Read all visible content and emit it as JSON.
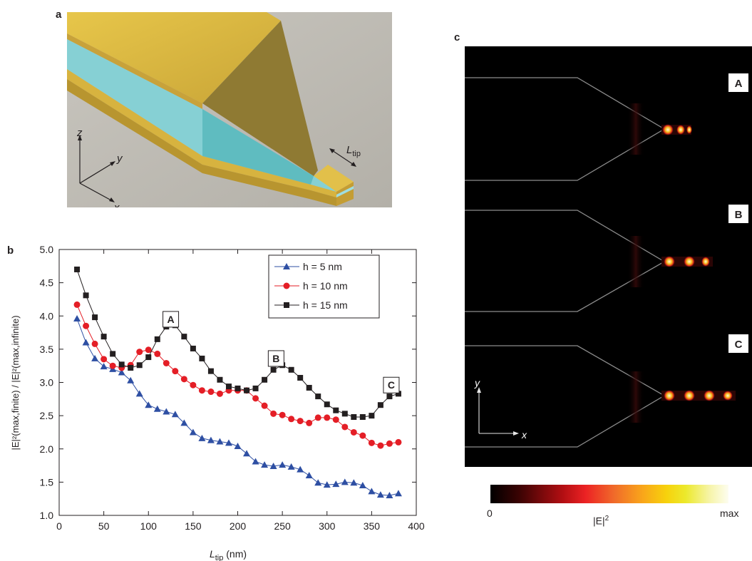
{
  "panels": {
    "a": {
      "letter": "a",
      "axis_z": "z",
      "axis_y": "y",
      "axis_x": "x",
      "ltip_main": "L",
      "ltip_sub": "tip"
    },
    "b": {
      "letter": "b"
    },
    "c": {
      "letter": "c",
      "labels": [
        "A",
        "B",
        "C"
      ],
      "axis_y": "y",
      "axis_x": "x"
    }
  },
  "colorbar": {
    "min_label": "0",
    "max_label": "max",
    "quantity": "|E|",
    "quantity_sup": "2"
  },
  "chart_data": {
    "type": "line",
    "xlabel_main": "L",
    "xlabel_sub": "tip",
    "xlabel_unit": " (nm)",
    "ylabel": "|E|²(max,finite) / |E|²(max,infinite)",
    "xlim": [
      0,
      400
    ],
    "ylim": [
      1.0,
      5.0
    ],
    "xticks": [
      0,
      50,
      100,
      150,
      200,
      250,
      300,
      350,
      400
    ],
    "yticks": [
      1.0,
      1.5,
      2.0,
      2.5,
      3.0,
      3.5,
      4.0,
      4.5,
      5.0
    ],
    "grid": false,
    "legend_position": "top-right",
    "series": [
      {
        "name": "h = 5 nm",
        "color": "#2e4fa3",
        "marker": "triangle",
        "x": [
          20,
          30,
          40,
          50,
          60,
          70,
          80,
          90,
          100,
          110,
          120,
          130,
          140,
          150,
          160,
          170,
          180,
          190,
          200,
          210,
          220,
          230,
          240,
          250,
          260,
          270,
          280,
          290,
          300,
          310,
          320,
          330,
          340,
          350,
          360,
          370,
          380
        ],
        "values": [
          3.96,
          3.6,
          3.36,
          3.24,
          3.2,
          3.15,
          3.03,
          2.83,
          2.66,
          2.6,
          2.56,
          2.52,
          2.39,
          2.25,
          2.16,
          2.13,
          2.11,
          2.09,
          2.04,
          1.93,
          1.81,
          1.76,
          1.74,
          1.76,
          1.73,
          1.69,
          1.6,
          1.49,
          1.46,
          1.47,
          1.5,
          1.49,
          1.45,
          1.36,
          1.31,
          1.3,
          1.33
        ]
      },
      {
        "name": "h = 10 nm",
        "color": "#e41e26",
        "marker": "circle",
        "x": [
          20,
          30,
          40,
          50,
          60,
          70,
          80,
          90,
          100,
          110,
          120,
          130,
          140,
          150,
          160,
          170,
          180,
          190,
          200,
          210,
          220,
          230,
          240,
          250,
          260,
          270,
          280,
          290,
          300,
          310,
          320,
          330,
          340,
          350,
          360,
          370,
          380
        ],
        "values": [
          4.17,
          3.85,
          3.58,
          3.35,
          3.25,
          3.22,
          3.26,
          3.46,
          3.49,
          3.43,
          3.29,
          3.17,
          3.05,
          2.96,
          2.88,
          2.86,
          2.83,
          2.88,
          2.88,
          2.88,
          2.76,
          2.65,
          2.53,
          2.51,
          2.45,
          2.42,
          2.39,
          2.47,
          2.47,
          2.44,
          2.33,
          2.25,
          2.2,
          2.09,
          2.05,
          2.08,
          2.1
        ]
      },
      {
        "name": "h = 15 nm",
        "color": "#231f20",
        "marker": "square",
        "x": [
          20,
          30,
          40,
          50,
          60,
          70,
          80,
          90,
          100,
          110,
          120,
          130,
          140,
          150,
          160,
          170,
          180,
          190,
          200,
          210,
          220,
          230,
          240,
          250,
          260,
          270,
          280,
          290,
          300,
          310,
          320,
          330,
          340,
          350,
          360,
          370,
          380
        ],
        "values": [
          4.7,
          4.31,
          3.98,
          3.69,
          3.43,
          3.27,
          3.22,
          3.26,
          3.38,
          3.65,
          3.84,
          3.86,
          3.69,
          3.51,
          3.36,
          3.17,
          3.04,
          2.94,
          2.91,
          2.88,
          2.91,
          3.04,
          3.19,
          3.26,
          3.19,
          3.07,
          2.92,
          2.79,
          2.67,
          2.58,
          2.53,
          2.48,
          2.48,
          2.5,
          2.66,
          2.79,
          2.83
        ]
      }
    ],
    "annotations": [
      {
        "text": "A",
        "x": 125,
        "y": 3.95
      },
      {
        "text": "B",
        "x": 243,
        "y": 3.36
      },
      {
        "text": "C",
        "x": 372,
        "y": 2.96
      }
    ]
  }
}
